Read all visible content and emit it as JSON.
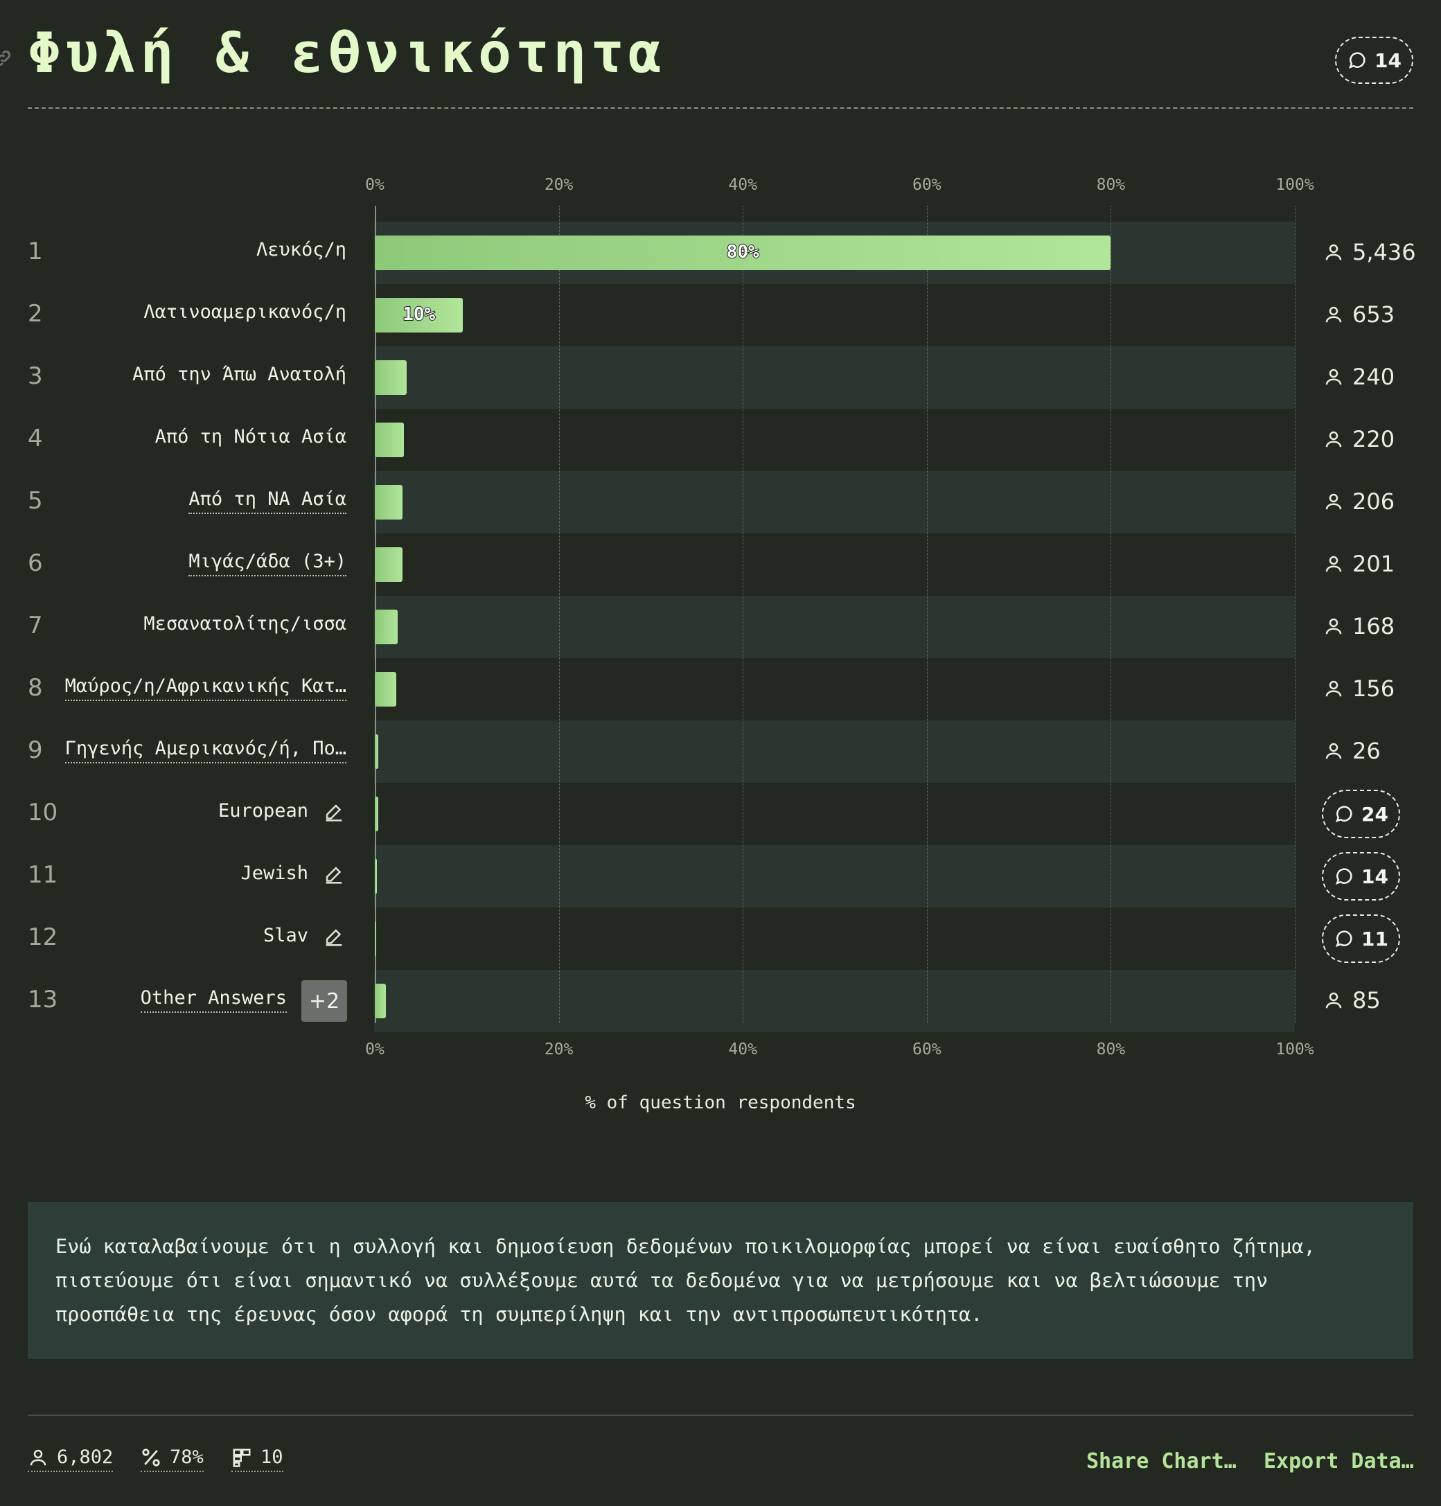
{
  "header": {
    "title": "Φυλή & εθνικότητα",
    "comment_count": "14"
  },
  "chart_data": {
    "type": "bar",
    "orientation": "horizontal",
    "xlabel": "% of question respondents",
    "xlim": [
      0,
      100
    ],
    "ticks": [
      "0%",
      "20%",
      "40%",
      "60%",
      "80%",
      "100%"
    ],
    "categories": [
      "Λευκός/η",
      "Λατινοαμερικανός/η",
      "Από την Άπω Ανατολή",
      "Από τη Νότια Ασία",
      "Από τη ΝΑ Ασία",
      "Μιγάς/άδα (3+)",
      "Μεσανατολίτης/ισσα",
      "Μαύρος/η/Αφρικανικής Κατ…",
      "Γηγενής Αμερικανός/ή, Πο…",
      "European",
      "Jewish",
      "Slav",
      "Other Answers"
    ],
    "values": [
      80,
      9.6,
      3.5,
      3.2,
      3.0,
      3.0,
      2.5,
      2.3,
      0.4,
      0.35,
      0.2,
      0.15,
      1.2
    ],
    "value_labels": [
      "80%",
      "10%",
      "",
      "",
      "",
      "",
      "",
      "",
      "",
      "",
      "",
      "",
      ""
    ],
    "grid": true
  },
  "rows": [
    {
      "num": "1",
      "label": "Λευκός/η",
      "count": "5,436",
      "dotted": false
    },
    {
      "num": "2",
      "label": "Λατινοαμερικανός/η",
      "count": "653",
      "dotted": false
    },
    {
      "num": "3",
      "label": "Από την Άπω Ανατολή",
      "count": "240",
      "dotted": false
    },
    {
      "num": "4",
      "label": "Από τη Νότια Ασία",
      "count": "220",
      "dotted": false
    },
    {
      "num": "5",
      "label": "Από τη ΝΑ Ασία",
      "count": "206",
      "dotted": true
    },
    {
      "num": "6",
      "label": "Μιγάς/άδα (3+)",
      "count": "201",
      "dotted": true
    },
    {
      "num": "7",
      "label": "Μεσανατολίτης/ισσα",
      "count": "168",
      "dotted": false
    },
    {
      "num": "8",
      "label": "Μαύρος/η/Αφρικανικής Κατ…",
      "count": "156",
      "dotted": true
    },
    {
      "num": "9",
      "label": "Γηγενής Αμερικανός/ή, Πο…",
      "count": "26",
      "dotted": true
    },
    {
      "num": "10",
      "label": "European",
      "comments": "24",
      "edit": true
    },
    {
      "num": "11",
      "label": "Jewish",
      "comments": "14",
      "edit": true
    },
    {
      "num": "12",
      "label": "Slav",
      "comments": "11",
      "edit": true
    },
    {
      "num": "13",
      "label": "Other Answers",
      "count": "85",
      "dotted": true,
      "more": "+2"
    }
  ],
  "note": "Ενώ καταλαβαίνουμε ότι η συλλογή και δημοσίευση δεδομένων ποικιλομορφίας μπορεί να είναι ευαίσθητο ζήτημα, πιστεύουμε ότι είναι σημαντικό να συλλέξουμε αυτά τα δεδομένα για να μετρήσουμε και να βελτιώσουμε την προσπάθεια της έρευνας όσον αφορά τη συμπερίληψη και την αντιπροσωπευτικότητα.",
  "footer": {
    "respondents": "6,802",
    "percent": "78%",
    "options": "10",
    "share_label": "Share Chart…",
    "export_label": "Export Data…"
  },
  "colors": {
    "background": "#232821",
    "stripe": "#2c3630",
    "bar_start": "#8ec97a",
    "bar_end": "#b1e59a",
    "accent": "#b6e39a",
    "title": "#e4f9c9"
  }
}
